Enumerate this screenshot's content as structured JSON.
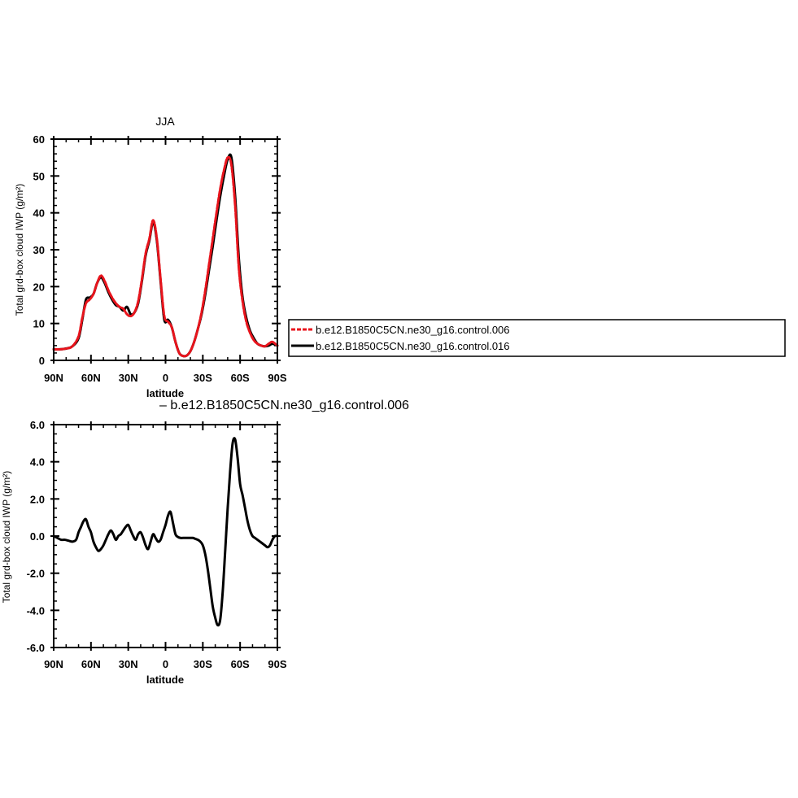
{
  "chart_data": [
    {
      "type": "line",
      "title": "JJA",
      "xlabel": "latitude",
      "ylabel": "Total grd-box cloud IWP (g/m²)",
      "xlim": [
        90,
        -90
      ],
      "ylim": [
        0,
        60
      ],
      "xticks": [
        90,
        60,
        30,
        0,
        -30,
        -60,
        -90
      ],
      "xtick_labels": [
        "90N",
        "60N",
        "30N",
        "0",
        "30S",
        "60S",
        "90S"
      ],
      "yticks": [
        0,
        10,
        20,
        30,
        40,
        50,
        60
      ],
      "ytick_labels": [
        "0",
        "10",
        "20",
        "30",
        "40",
        "50",
        "60"
      ],
      "legend_position": "right",
      "series": [
        {
          "name": "b.e12.B1850C5CN.ne30_g16.control.006",
          "color": "#e8141c",
          "dash": "dashed",
          "x": [
            90,
            85,
            80,
            75,
            70,
            67,
            64,
            61,
            58,
            55,
            52,
            49,
            46,
            43,
            40,
            37,
            34,
            31,
            28,
            25,
            22,
            19,
            16,
            13,
            10,
            7,
            4,
            1,
            -2,
            -5,
            -8,
            -11,
            -14,
            -17,
            -20,
            -23,
            -26,
            -29,
            -32,
            -35,
            -38,
            -41,
            -44,
            -47,
            -50,
            -53,
            -56,
            -59,
            -62,
            -65,
            -68,
            -71,
            -74,
            -77,
            -80,
            -83,
            -86,
            -90
          ],
          "y": [
            3.0,
            3.0,
            3.2,
            3.8,
            6.5,
            11.5,
            15.5,
            16.5,
            18.0,
            21.0,
            23.0,
            21.5,
            19.0,
            17.0,
            15.5,
            14.5,
            14.0,
            12.5,
            12.0,
            13.0,
            16.0,
            22.0,
            29.0,
            33.0,
            38.0,
            33.0,
            22.0,
            12.0,
            10.5,
            9.0,
            5.0,
            2.0,
            1.2,
            1.3,
            2.5,
            5.0,
            8.5,
            13.0,
            19.0,
            26.0,
            33.0,
            40.0,
            46.5,
            51.5,
            55.0,
            53.0,
            42.0,
            25.0,
            16.0,
            10.5,
            7.5,
            5.5,
            4.5,
            4.0,
            3.8,
            4.5,
            5.0,
            4.0
          ]
        },
        {
          "name": "b.e12.B1850C5CN.ne30_g16.control.016",
          "color": "#000000",
          "dash": "solid",
          "x": [
            90,
            85,
            80,
            75,
            70,
            67,
            64,
            61,
            58,
            55,
            52,
            49,
            46,
            43,
            40,
            37,
            34,
            31,
            28,
            25,
            22,
            19,
            16,
            13,
            10,
            7,
            4,
            1,
            -2,
            -5,
            -8,
            -11,
            -14,
            -17,
            -20,
            -23,
            -26,
            -29,
            -32,
            -35,
            -38,
            -41,
            -44,
            -47,
            -50,
            -53,
            -56,
            -59,
            -62,
            -65,
            -68,
            -71,
            -74,
            -77,
            -80,
            -83,
            -86,
            -90
          ],
          "y": [
            3.0,
            3.0,
            3.2,
            3.8,
            6.0,
            11.0,
            16.5,
            17.0,
            18.0,
            21.0,
            22.5,
            21.0,
            18.5,
            16.5,
            15.0,
            14.5,
            13.5,
            14.5,
            12.5,
            13.0,
            15.5,
            21.5,
            28.5,
            32.5,
            37.5,
            32.5,
            21.5,
            11.0,
            11.0,
            9.0,
            5.0,
            2.0,
            1.2,
            1.3,
            2.5,
            5.0,
            8.5,
            12.5,
            18.0,
            24.5,
            31.0,
            38.0,
            44.5,
            50.0,
            54.5,
            55.0,
            44.5,
            27.5,
            17.0,
            11.5,
            8.0,
            6.0,
            4.5,
            4.0,
            3.8,
            4.0,
            4.5,
            4.0
          ]
        }
      ]
    },
    {
      "type": "line",
      "title": " –  b.e12.B1850C5CN.ne30_g16.control.006",
      "xlabel": "latitude",
      "ylabel": "Total grd-box cloud IWP (g/m²)",
      "xlim": [
        90,
        -90
      ],
      "ylim": [
        -6,
        6
      ],
      "xticks": [
        90,
        60,
        30,
        0,
        -30,
        -60,
        -90
      ],
      "xtick_labels": [
        "90N",
        "60N",
        "30N",
        "0",
        "30S",
        "60S",
        "90S"
      ],
      "yticks": [
        -6,
        -4,
        -2,
        0,
        2,
        4,
        6
      ],
      "ytick_labels": [
        "-6.0",
        "-4.0",
        "-2.0",
        "0.0",
        "2.0",
        "4.0",
        "6.0"
      ],
      "series": [
        {
          "color": "#000000",
          "dash": "solid",
          "x": [
            90,
            87,
            84,
            81,
            78,
            75,
            72,
            70,
            68,
            66,
            64,
            62,
            60,
            58,
            56,
            54,
            52,
            50,
            48,
            46,
            44,
            42,
            40,
            38,
            36,
            34,
            32,
            30,
            28,
            26,
            24,
            22,
            20,
            18,
            16,
            14,
            12,
            10,
            8,
            6,
            4,
            2,
            0,
            -2,
            -4,
            -6,
            -8,
            -10,
            -12,
            -14,
            -16,
            -18,
            -20,
            -22,
            -24,
            -26,
            -28,
            -30,
            -32,
            -34,
            -36,
            -38,
            -40,
            -42,
            -44,
            -46,
            -48,
            -50,
            -52,
            -54,
            -56,
            -58,
            -60,
            -62,
            -64,
            -66,
            -68,
            -70,
            -72,
            -74,
            -76,
            -78,
            -80,
            -82,
            -84,
            -86,
            -88,
            -90
          ],
          "y": [
            0.0,
            -0.1,
            -0.2,
            -0.2,
            -0.25,
            -0.3,
            -0.2,
            0.2,
            0.5,
            0.8,
            0.9,
            0.5,
            0.2,
            -0.3,
            -0.6,
            -0.8,
            -0.7,
            -0.5,
            -0.2,
            0.1,
            0.3,
            0.1,
            -0.2,
            0.0,
            0.1,
            0.3,
            0.5,
            0.6,
            0.3,
            0.0,
            -0.2,
            0.1,
            0.2,
            -0.1,
            -0.5,
            -0.7,
            -0.3,
            0.1,
            -0.1,
            -0.3,
            -0.2,
            0.2,
            0.6,
            1.1,
            1.3,
            0.7,
            0.1,
            -0.05,
            -0.1,
            -0.1,
            -0.1,
            -0.1,
            -0.1,
            -0.1,
            -0.15,
            -0.2,
            -0.3,
            -0.5,
            -1.0,
            -1.8,
            -2.8,
            -3.8,
            -4.4,
            -4.8,
            -4.5,
            -3.0,
            -0.8,
            1.5,
            3.5,
            5.0,
            5.2,
            4.2,
            2.8,
            2.2,
            1.5,
            0.8,
            0.3,
            0.0,
            -0.1,
            -0.2,
            -0.3,
            -0.4,
            -0.5,
            -0.6,
            -0.5,
            -0.2,
            0.0,
            0.0
          ]
        }
      ]
    }
  ],
  "legend": {
    "entries": [
      {
        "label": "b.e12.B1850C5CN.ne30_g16.control.006",
        "color": "#e8141c",
        "dash": "dashed"
      },
      {
        "label": "b.e12.B1850C5CN.ne30_g16.control.016",
        "color": "#000000",
        "dash": "solid"
      }
    ]
  }
}
